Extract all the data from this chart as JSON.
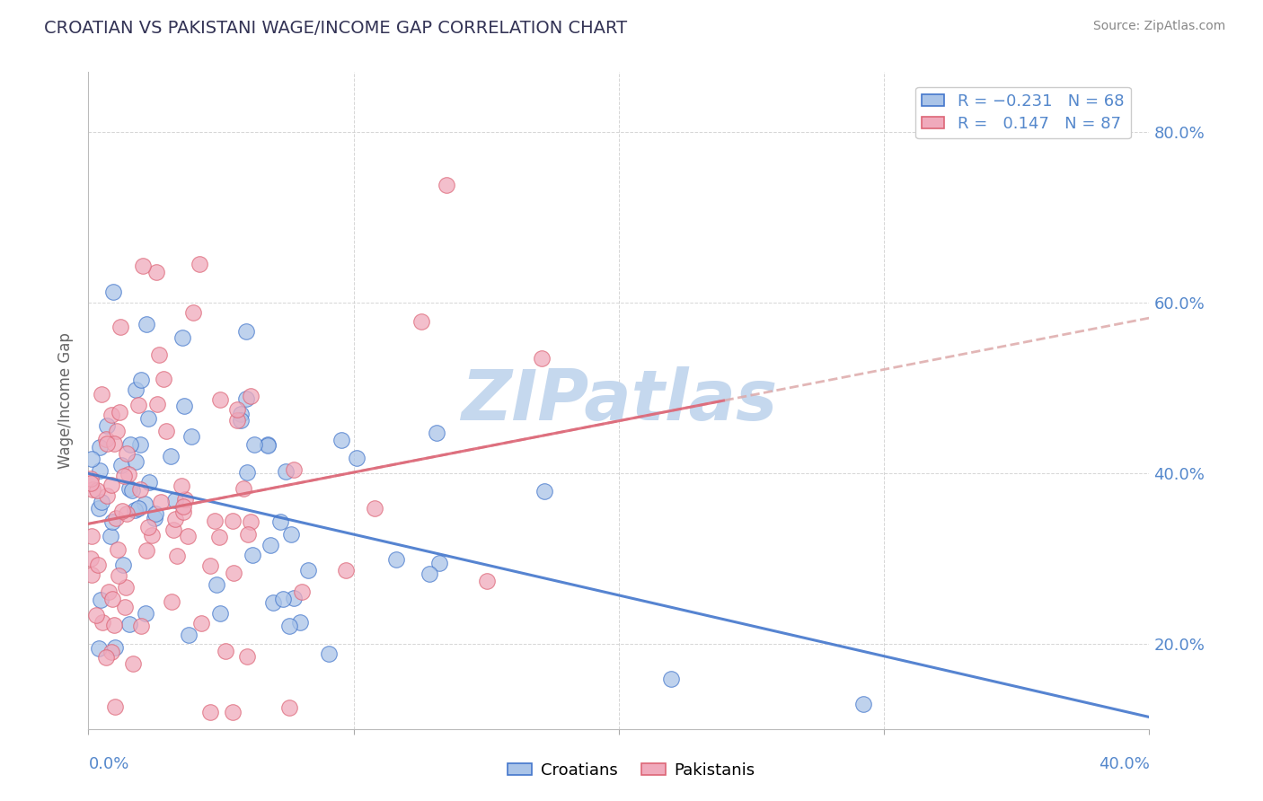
{
  "title": "CROATIAN VS PAKISTANI WAGE/INCOME GAP CORRELATION CHART",
  "source": "Source: ZipAtlas.com",
  "ylabel": "Wage/Income Gap",
  "yticks": [
    0.2,
    0.4,
    0.6,
    0.8
  ],
  "ytick_labels": [
    "20.0%",
    "40.0%",
    "60.0%",
    "80.0%"
  ],
  "xlim": [
    0.0,
    0.4
  ],
  "ylim": [
    0.1,
    0.87
  ],
  "croatian_color": "#aac4e8",
  "pakistani_color": "#f0aabc",
  "trend_croatian_color": "#4477cc",
  "trend_pakistani_color": "#dd6677",
  "trend_pakistani_dash_color": "#ddaaaa",
  "watermark": "ZIPatlas",
  "watermark_color": "#c5d8ee",
  "croatian_R": -0.231,
  "pakistani_R": 0.147,
  "croatian_N": 68,
  "pakistani_N": 87
}
